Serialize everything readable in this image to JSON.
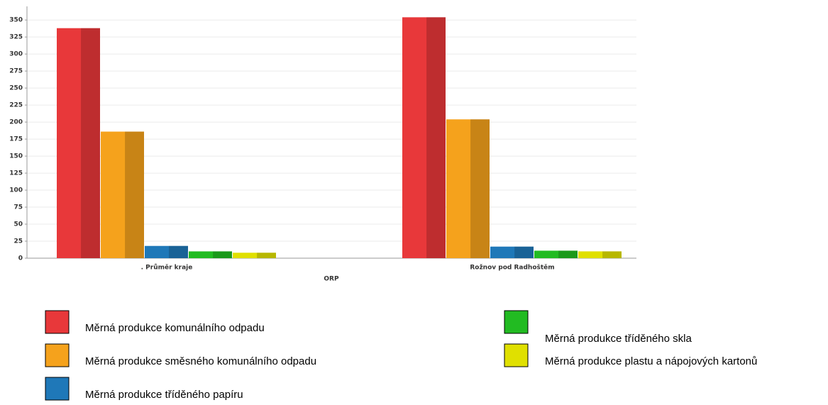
{
  "chart_data": {
    "type": "bar",
    "categories": [
      ". Průměr kraje",
      "Rožnov pod Radhoštěm"
    ],
    "x_label": "ORP",
    "series": [
      {
        "name": "Měrná produkce komunálního odpadu",
        "color": "#e8383a",
        "values": [
          338,
          354
        ]
      },
      {
        "name": "Měrná produkce směsného komunálního odpadu",
        "color": "#f5a21c",
        "values": [
          186,
          204
        ]
      },
      {
        "name": "Měrná produkce tříděného papíru",
        "color": "#1f78b8",
        "values": [
          18,
          17
        ]
      },
      {
        "name": "Měrná produkce tříděného skla",
        "color": "#22bb22",
        "values": [
          10,
          11
        ]
      },
      {
        "name": "Měrná produkce plastu a nápojových kartonů",
        "color": "#e0e000",
        "values": [
          8,
          10
        ]
      }
    ],
    "ylim": [
      0,
      370
    ],
    "yticks": [
      0,
      25,
      50,
      75,
      100,
      125,
      150,
      175,
      200,
      225,
      250,
      275,
      300,
      325,
      350
    ],
    "grid": true
  }
}
